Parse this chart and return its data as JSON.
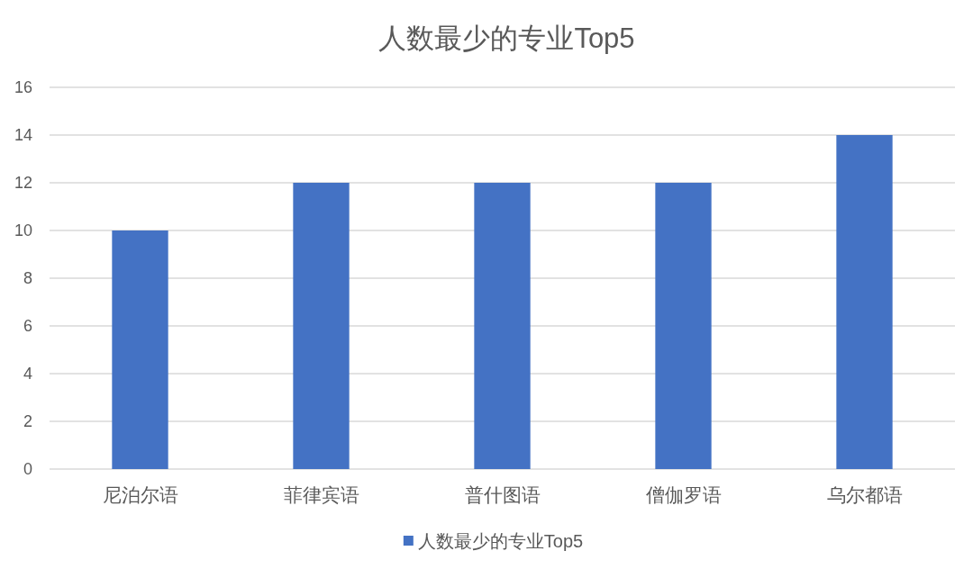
{
  "chart_data": {
    "type": "bar",
    "title": "人数最少的专业Top5",
    "categories": [
      "尼泊尔语",
      "菲律宾语",
      "普什图语",
      "僧伽罗语",
      "乌尔都语"
    ],
    "series": [
      {
        "name": "人数最少的专业Top5",
        "color": "#4472c4",
        "values": [
          10,
          12,
          12,
          12,
          14
        ]
      }
    ],
    "ylim": [
      0,
      16
    ],
    "yticks": [
      0,
      2,
      4,
      6,
      8,
      10,
      12,
      14,
      16
    ],
    "grid": "y",
    "legend": "bottom"
  }
}
